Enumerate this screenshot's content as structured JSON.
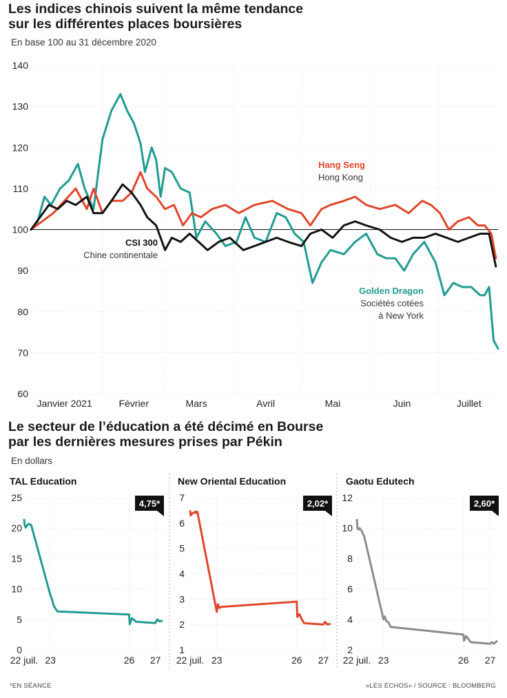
{
  "top": {
    "title_line1": "Les indices chinois suivent la même tendance",
    "title_line2": "sur les différentes places boursières",
    "subtitle": "En base 100 au 31 décembre 2020"
  },
  "bottom": {
    "title_line1": "Le secteur de l’éducation a été décimé en Bourse",
    "title_line2": "par les dernières mesures prises par Pékin",
    "subtitle": "En dollars"
  },
  "footer": {
    "note": "*EN SÉANCE",
    "source": "«LES ÉCHOS» / SOURCE : BLOOMBERG"
  },
  "colors": {
    "hang_seng": "#e0452a",
    "csi300": "#111111",
    "golden_dragon": "#1f9b8f",
    "gaotu": "#8c8c8c",
    "grid": "#b5b5b5"
  },
  "chart_data": [
    {
      "type": "line",
      "ylim": [
        60,
        140
      ],
      "yticks": [
        60,
        70,
        80,
        90,
        100,
        110,
        120,
        130,
        140
      ],
      "xlim": [
        "2020-12-31",
        "2021-07-28"
      ],
      "xticks": [
        {
          "label": "Janvier 2021",
          "date": "2021-01-15"
        },
        {
          "label": "Février",
          "date": "2021-02-15"
        },
        {
          "label": "Mars",
          "date": "2021-03-15"
        },
        {
          "label": "Avril",
          "date": "2021-04-15"
        },
        {
          "label": "Mai",
          "date": "2021-05-15"
        },
        {
          "label": "Juin",
          "date": "2021-06-15"
        },
        {
          "label": "Juillet",
          "date": "2021-07-15"
        }
      ],
      "reference_line": 100,
      "annotations": [
        {
          "series": "Hang Seng",
          "label": "Hang Seng",
          "sublabel": "Hong Kong"
        },
        {
          "series": "CSI 300",
          "label": "CSI 300",
          "sublabel": "Chine continentale"
        },
        {
          "series": "Golden Dragon",
          "label": "Golden Dragon",
          "sublabel_line1": "Sociétés cotées",
          "sublabel_line2": "à New York"
        }
      ],
      "series": [
        {
          "name": "Hang Seng",
          "color": "#e0452a",
          "x": [
            "2020-12-31",
            "2021-01-05",
            "2021-01-10",
            "2021-01-15",
            "2021-01-20",
            "2021-01-25",
            "2021-01-28",
            "2021-02-01",
            "2021-02-05",
            "2021-02-10",
            "2021-02-14",
            "2021-02-18",
            "2021-02-21",
            "2021-02-25",
            "2021-03-01",
            "2021-03-05",
            "2021-03-09",
            "2021-03-13",
            "2021-03-17",
            "2021-03-22",
            "2021-03-28",
            "2021-04-03",
            "2021-04-10",
            "2021-04-18",
            "2021-04-25",
            "2021-05-01",
            "2021-05-05",
            "2021-05-10",
            "2021-05-14",
            "2021-05-20",
            "2021-05-25",
            "2021-05-30",
            "2021-06-05",
            "2021-06-12",
            "2021-06-18",
            "2021-06-24",
            "2021-06-28",
            "2021-07-02",
            "2021-07-06",
            "2021-07-10",
            "2021-07-15",
            "2021-07-19",
            "2021-07-22",
            "2021-07-25",
            "2021-07-27"
          ],
          "y": [
            100,
            102,
            104,
            107,
            110,
            105,
            110,
            104,
            107,
            107,
            109,
            114,
            110,
            108,
            105,
            106,
            101,
            104,
            103,
            105,
            106,
            104,
            106,
            107,
            105,
            104,
            101,
            105,
            106,
            107,
            108,
            106,
            105,
            106,
            104,
            107,
            106,
            104,
            100,
            102,
            103,
            101,
            101,
            99,
            93
          ]
        },
        {
          "name": "CSI 300",
          "color": "#111111",
          "x": [
            "2020-12-31",
            "2021-01-04",
            "2021-01-08",
            "2021-01-12",
            "2021-01-16",
            "2021-01-20",
            "2021-01-25",
            "2021-01-28",
            "2021-02-01",
            "2021-02-05",
            "2021-02-10",
            "2021-02-14",
            "2021-02-18",
            "2021-02-21",
            "2021-02-25",
            "2021-03-01",
            "2021-03-04",
            "2021-03-08",
            "2021-03-12",
            "2021-03-16",
            "2021-03-20",
            "2021-03-25",
            "2021-03-30",
            "2021-04-05",
            "2021-04-10",
            "2021-04-15",
            "2021-04-20",
            "2021-04-25",
            "2021-05-01",
            "2021-05-05",
            "2021-05-10",
            "2021-05-15",
            "2021-05-20",
            "2021-05-25",
            "2021-05-30",
            "2021-06-05",
            "2021-06-10",
            "2021-06-15",
            "2021-06-20",
            "2021-06-25",
            "2021-06-30",
            "2021-07-05",
            "2021-07-10",
            "2021-07-15",
            "2021-07-20",
            "2021-07-24",
            "2021-07-27"
          ],
          "y": [
            100,
            103,
            106,
            105,
            107,
            106,
            108,
            104,
            104,
            107,
            111,
            109,
            106,
            103,
            101,
            95,
            98,
            97,
            99,
            97,
            95,
            97,
            98,
            95,
            96,
            97,
            98,
            97,
            96,
            99,
            100,
            98,
            101,
            102,
            101,
            100,
            98,
            97,
            98,
            98,
            99,
            98,
            97,
            98,
            99,
            99,
            91
          ]
        },
        {
          "name": "Golden Dragon",
          "color": "#1f9b8f",
          "x": [
            "2020-12-31",
            "2021-01-03",
            "2021-01-06",
            "2021-01-09",
            "2021-01-13",
            "2021-01-17",
            "2021-01-21",
            "2021-01-24",
            "2021-01-28",
            "2021-02-01",
            "2021-02-05",
            "2021-02-09",
            "2021-02-12",
            "2021-02-15",
            "2021-02-18",
            "2021-02-20",
            "2021-02-23",
            "2021-02-25",
            "2021-02-27",
            "2021-03-01",
            "2021-03-04",
            "2021-03-08",
            "2021-03-12",
            "2021-03-15",
            "2021-03-19",
            "2021-03-24",
            "2021-03-28",
            "2021-04-02",
            "2021-04-06",
            "2021-04-10",
            "2021-04-15",
            "2021-04-20",
            "2021-04-24",
            "2021-04-28",
            "2021-05-02",
            "2021-05-06",
            "2021-05-10",
            "2021-05-14",
            "2021-05-20",
            "2021-05-25",
            "2021-05-30",
            "2021-06-04",
            "2021-06-08",
            "2021-06-12",
            "2021-06-16",
            "2021-06-20",
            "2021-06-25",
            "2021-06-30",
            "2021-07-04",
            "2021-07-08",
            "2021-07-12",
            "2021-07-16",
            "2021-07-20",
            "2021-07-22",
            "2021-07-24",
            "2021-07-26",
            "2021-07-28"
          ],
          "y": [
            100,
            102,
            108,
            106,
            110,
            112,
            116,
            110,
            105,
            122,
            129,
            133,
            129,
            126,
            121,
            114,
            120,
            117,
            108,
            115,
            114,
            110,
            109,
            98,
            102,
            99,
            96,
            97,
            103,
            98,
            97,
            104,
            103,
            99,
            97,
            87,
            92,
            95,
            94,
            97,
            99,
            94,
            93,
            93,
            90,
            94,
            97,
            92,
            84,
            87,
            86,
            86,
            84,
            84,
            86,
            73,
            71
          ]
        }
      ]
    },
    {
      "type": "line",
      "title": "TAL Education",
      "badge": "4,75*",
      "color": "#1f9b8f",
      "ylim": [
        0,
        25
      ],
      "yticks": [
        0,
        5,
        10,
        15,
        20,
        25
      ],
      "xlim": [
        "2021-07-22 09:30",
        "2021-07-27 16:00"
      ],
      "xticks": [
        {
          "label": "22 juil.",
          "date": "2021-07-22 09:30"
        },
        {
          "label": "23",
          "date": "2021-07-23 09:30"
        },
        {
          "label": "26",
          "date": "2021-07-26 09:30"
        },
        {
          "label": "27",
          "date": "2021-07-27 09:30"
        }
      ],
      "x": [
        "2021-07-22 09:30",
        "2021-07-22 10:00",
        "2021-07-22 11:00",
        "2021-07-22 12:00",
        "2021-07-22 13:00",
        "2021-07-22 14:00",
        "2021-07-22 15:00",
        "2021-07-22 16:00",
        "2021-07-23 09:30",
        "2021-07-23 11:00",
        "2021-07-23 12:30",
        "2021-07-23 14:00",
        "2021-07-23 16:00",
        "2021-07-26 09:30",
        "2021-07-26 10:00",
        "2021-07-26 12:00",
        "2021-07-26 14:00",
        "2021-07-26 16:00",
        "2021-07-27 09:30",
        "2021-07-27 11:00",
        "2021-07-27 13:00",
        "2021-07-27 16:00"
      ],
      "values": [
        21.5,
        20.5,
        20.1,
        20.4,
        20.6,
        20.7,
        20.6,
        20.5,
        9.0,
        8.3,
        7.3,
        6.8,
        6.3,
        5.8,
        4.2,
        5.2,
        4.9,
        4.6,
        4.4,
        5.0,
        4.7,
        4.75
      ]
    },
    {
      "type": "line",
      "title": "New Oriental Education",
      "badge": "2,02*",
      "color": "#e0452a",
      "ylim": [
        1,
        7
      ],
      "yticks": [
        1,
        2,
        3,
        4,
        5,
        6,
        7
      ],
      "xlim": [
        "2021-07-22 09:30",
        "2021-07-27 16:00"
      ],
      "xticks": [
        {
          "label": "22 juil.",
          "date": "2021-07-22 09:30"
        },
        {
          "label": "23",
          "date": "2021-07-23 09:30"
        },
        {
          "label": "26",
          "date": "2021-07-26 09:30"
        },
        {
          "label": "27",
          "date": "2021-07-27 09:30"
        }
      ],
      "x": [
        "2021-07-22 09:30",
        "2021-07-22 10:00",
        "2021-07-22 11:00",
        "2021-07-22 12:00",
        "2021-07-22 13:00",
        "2021-07-22 14:00",
        "2021-07-22 15:00",
        "2021-07-22 16:00",
        "2021-07-23 09:30",
        "2021-07-23 10:30",
        "2021-07-23 12:00",
        "2021-07-23 14:00",
        "2021-07-23 16:00",
        "2021-07-26 09:30",
        "2021-07-26 10:00",
        "2021-07-26 12:00",
        "2021-07-26 14:00",
        "2021-07-26 16:00",
        "2021-07-27 09:30",
        "2021-07-27 11:00",
        "2021-07-27 13:00",
        "2021-07-27 16:00"
      ],
      "values": [
        6.5,
        6.3,
        6.35,
        6.4,
        6.4,
        6.45,
        6.4,
        6.45,
        2.5,
        2.8,
        2.65,
        2.7,
        2.7,
        2.9,
        2.3,
        2.4,
        2.2,
        2.05,
        2.0,
        2.1,
        2.0,
        2.02
      ]
    },
    {
      "type": "line",
      "title": "Gaotu Edutech",
      "badge": "2,60*",
      "color": "#8c8c8c",
      "ylim": [
        2,
        12
      ],
      "yticks": [
        2,
        4,
        6,
        8,
        10,
        12
      ],
      "xlim": [
        "2021-07-22 09:30",
        "2021-07-27 16:00"
      ],
      "xticks": [
        {
          "label": "22 juil.",
          "date": "2021-07-22 09:30"
        },
        {
          "label": "23",
          "date": "2021-07-23 09:30"
        },
        {
          "label": "26",
          "date": "2021-07-26 09:30"
        },
        {
          "label": "27",
          "date": "2021-07-27 09:30"
        }
      ],
      "x": [
        "2021-07-22 09:30",
        "2021-07-22 10:00",
        "2021-07-22 11:00",
        "2021-07-22 12:00",
        "2021-07-22 13:00",
        "2021-07-22 14:00",
        "2021-07-22 15:00",
        "2021-07-22 16:00",
        "2021-07-23 09:30",
        "2021-07-23 10:30",
        "2021-07-23 12:00",
        "2021-07-23 14:00",
        "2021-07-23 16:00",
        "2021-07-26 09:30",
        "2021-07-26 10:00",
        "2021-07-26 12:00",
        "2021-07-26 14:00",
        "2021-07-26 16:00",
        "2021-07-27 09:30",
        "2021-07-27 11:00",
        "2021-07-27 13:00",
        "2021-07-27 16:00"
      ],
      "values": [
        10.6,
        10.0,
        9.9,
        10.0,
        9.9,
        9.8,
        9.6,
        9.5,
        4.0,
        4.2,
        3.9,
        3.8,
        3.5,
        3.0,
        2.6,
        2.9,
        2.7,
        2.5,
        2.4,
        2.5,
        2.4,
        2.6
      ]
    }
  ]
}
